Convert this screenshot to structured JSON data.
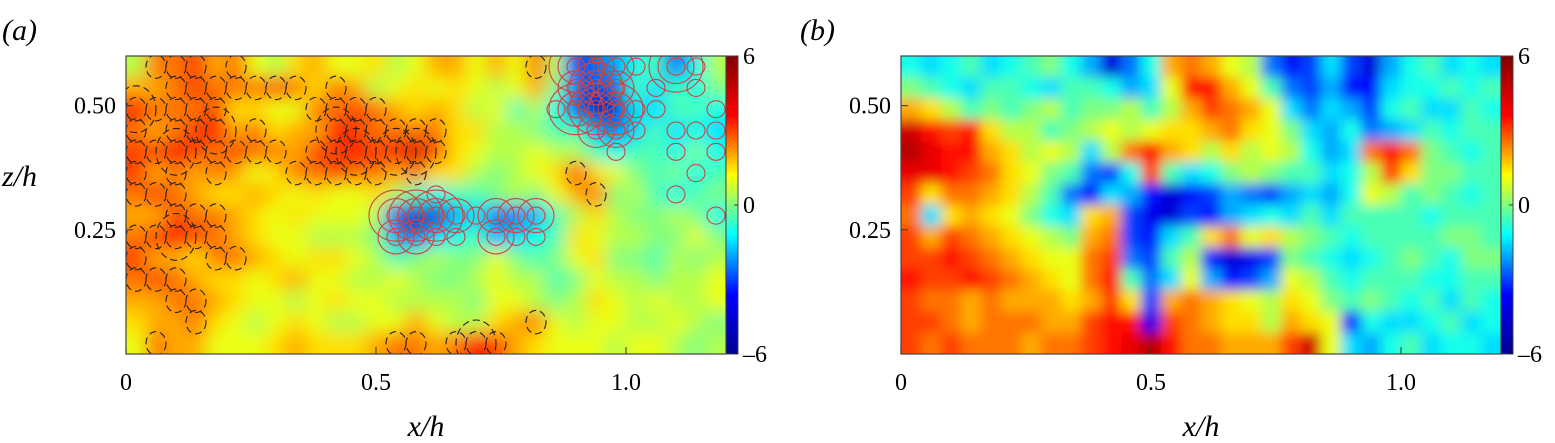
{
  "chart_data": [
    {
      "type": "heatmap",
      "panel_label": "(a)",
      "xlabel": "x/h",
      "ylabel": "z/h",
      "xlim": [
        0,
        1.2
      ],
      "ylim": [
        0,
        0.6
      ],
      "x_ticks": [
        {
          "value": 0,
          "label": "0"
        },
        {
          "value": 0.5,
          "label": "0.5"
        },
        {
          "value": 1.0,
          "label": "1.0"
        }
      ],
      "y_ticks": [
        {
          "value": 0.25,
          "label": "0.25"
        },
        {
          "value": 0.5,
          "label": "0.50"
        }
      ],
      "colorbar": {
        "range": [
          -6,
          6
        ],
        "ticks": [
          {
            "value": 6,
            "label": "6"
          },
          {
            "value": 0,
            "label": "0"
          },
          {
            "value": -6,
            "label": "–6"
          }
        ],
        "colormap": [
          "#00008f",
          "#0000ff",
          "#00ffff",
          "#ffff00",
          "#ff0000",
          "#800000"
        ]
      },
      "contours": {
        "positive_color": "#cc4444",
        "negative_color": "#222222",
        "negative_style": "dashed"
      },
      "field": [
        [
          0.5,
          2.5,
          2.5,
          3.0,
          2.0,
          2.5,
          1.0,
          0.5,
          1.5,
          2.0,
          1.0,
          1.0,
          1.5,
          0.5,
          1.0,
          2.0,
          2.0,
          1.0,
          2.0,
          1.0,
          2.5,
          0.5,
          -3.5,
          -2.5,
          -2.0,
          -1.0,
          -0.5,
          -3.0,
          -1.0,
          0.5
        ],
        [
          2.0,
          2.0,
          2.5,
          3.0,
          2.5,
          2.5,
          2.5,
          3.0,
          2.5,
          1.5,
          2.5,
          2.0,
          0.5,
          1.0,
          1.5,
          1.0,
          1.5,
          1.0,
          0.5,
          1.0,
          2.0,
          0.0,
          -2.5,
          -3.0,
          -2.5,
          -0.5,
          -1.5,
          -0.5,
          -1.0,
          0.0
        ],
        [
          3.5,
          2.5,
          2.5,
          2.5,
          3.0,
          1.5,
          1.5,
          1.0,
          1.0,
          2.5,
          2.5,
          3.0,
          2.5,
          2.0,
          1.5,
          2.0,
          1.5,
          0.5,
          1.0,
          -0.5,
          0.5,
          -1.0,
          -3.0,
          -5.0,
          -4.5,
          -1.5,
          -1.5,
          -0.5,
          -0.5,
          -1.0
        ],
        [
          2.5,
          2.0,
          2.5,
          3.0,
          3.5,
          2.0,
          2.5,
          1.5,
          2.0,
          2.0,
          3.5,
          3.0,
          2.5,
          2.5,
          2.5,
          2.5,
          1.5,
          1.5,
          0.5,
          0.5,
          0.0,
          -0.5,
          -0.5,
          -2.0,
          -2.5,
          -1.5,
          -0.5,
          -1.5,
          -1.0,
          -1.5
        ],
        [
          3.0,
          3.0,
          3.5,
          3.0,
          2.5,
          3.0,
          2.5,
          2.5,
          2.0,
          3.0,
          3.0,
          3.5,
          3.0,
          3.5,
          4.5,
          3.0,
          1.5,
          1.0,
          0.5,
          0.5,
          1.0,
          0.5,
          0.5,
          -0.5,
          -1.0,
          -0.5,
          -0.5,
          -1.0,
          0.0,
          -1.0
        ],
        [
          3.0,
          2.0,
          2.5,
          2.0,
          2.5,
          2.0,
          1.0,
          1.5,
          2.5,
          2.5,
          3.0,
          2.5,
          2.5,
          2.0,
          2.5,
          1.5,
          1.5,
          0.5,
          0.0,
          0.5,
          1.0,
          1.5,
          3.0,
          1.5,
          1.0,
          0.0,
          -0.5,
          0.0,
          -1.0,
          -0.5
        ],
        [
          2.5,
          3.0,
          2.5,
          2.0,
          1.5,
          1.5,
          2.0,
          1.5,
          1.0,
          1.5,
          1.0,
          1.0,
          1.5,
          0.5,
          -0.5,
          -1.0,
          -0.5,
          -0.5,
          0.0,
          0.5,
          0.0,
          1.0,
          2.0,
          2.5,
          0.0,
          0.5,
          -0.5,
          -1.0,
          -0.5,
          0.0
        ],
        [
          2.0,
          2.0,
          3.0,
          2.5,
          2.5,
          2.0,
          1.5,
          1.0,
          1.5,
          1.0,
          1.0,
          1.0,
          0.5,
          -3.0,
          -4.5,
          -4.0,
          -2.0,
          -1.5,
          -2.5,
          -2.5,
          -2.0,
          -0.5,
          0.5,
          1.5,
          0.5,
          0.0,
          0.0,
          0.5,
          0.0,
          -1.0
        ],
        [
          2.5,
          3.0,
          3.5,
          3.0,
          2.5,
          2.0,
          1.5,
          1.0,
          1.0,
          0.5,
          0.5,
          0.5,
          0.0,
          -2.0,
          -2.5,
          -1.5,
          -1.0,
          -0.5,
          -2.0,
          -1.5,
          -1.0,
          -0.5,
          1.5,
          1.0,
          0.5,
          0.5,
          0.0,
          0.0,
          1.0,
          0.0
        ],
        [
          3.0,
          2.0,
          2.0,
          1.5,
          2.5,
          2.5,
          2.0,
          1.5,
          1.0,
          1.5,
          1.5,
          1.0,
          0.5,
          -0.5,
          0.0,
          0.5,
          0.0,
          0.0,
          1.0,
          0.0,
          -0.5,
          0.0,
          1.0,
          1.5,
          0.0,
          0.0,
          -0.5,
          0.5,
          0.0,
          0.5
        ],
        [
          2.5,
          3.0,
          2.5,
          2.0,
          1.5,
          1.5,
          1.0,
          1.5,
          2.0,
          1.0,
          1.0,
          0.5,
          0.5,
          1.0,
          0.5,
          0.0,
          0.0,
          0.5,
          1.0,
          0.5,
          0.5,
          -0.5,
          0.0,
          1.0,
          0.5,
          0.5,
          0.0,
          0.5,
          0.5,
          1.0
        ],
        [
          2.0,
          2.0,
          2.5,
          2.5,
          2.0,
          1.5,
          1.0,
          1.0,
          0.5,
          1.0,
          1.5,
          1.0,
          1.0,
          0.5,
          0.5,
          0.5,
          0.5,
          0.0,
          1.0,
          1.0,
          0.5,
          0.0,
          0.5,
          1.5,
          1.0,
          0.5,
          1.0,
          0.5,
          0.5,
          1.0
        ],
        [
          1.5,
          2.0,
          2.0,
          2.5,
          1.5,
          1.0,
          0.5,
          1.0,
          1.5,
          1.0,
          0.5,
          0.5,
          1.0,
          1.0,
          2.0,
          1.0,
          0.5,
          0.5,
          1.5,
          2.0,
          2.5,
          1.0,
          0.5,
          1.0,
          1.0,
          0.5,
          0.5,
          1.0,
          0.5,
          0.0
        ],
        [
          1.0,
          2.5,
          2.0,
          2.0,
          1.0,
          1.0,
          1.0,
          1.5,
          2.0,
          1.5,
          1.5,
          1.5,
          2.0,
          2.5,
          2.5,
          2.0,
          2.5,
          3.5,
          3.0,
          2.0,
          1.5,
          1.0,
          1.0,
          1.0,
          0.5,
          1.0,
          1.0,
          0.5,
          0.0,
          0.5
        ]
      ]
    },
    {
      "type": "heatmap",
      "panel_label": "(b)",
      "xlabel": "x/h",
      "ylabel": "",
      "xlim": [
        0,
        1.2
      ],
      "ylim": [
        0,
        0.6
      ],
      "x_ticks": [
        {
          "value": 0,
          "label": "0"
        },
        {
          "value": 0.5,
          "label": "0.5"
        },
        {
          "value": 1.0,
          "label": "1.0"
        }
      ],
      "y_ticks": [
        {
          "value": 0.25,
          "label": "0.25"
        },
        {
          "value": 0.5,
          "label": "0.50"
        }
      ],
      "colorbar": {
        "range": [
          -6,
          6
        ],
        "ticks": [
          {
            "value": 6,
            "label": "6"
          },
          {
            "value": 0,
            "label": "0"
          },
          {
            "value": -6,
            "label": "–6"
          }
        ],
        "colormap": [
          "#00008f",
          "#0000ff",
          "#00ffff",
          "#ffff00",
          "#ff0000",
          "#800000"
        ]
      },
      "field": [
        [
          -1.0,
          -1.5,
          -1.0,
          -0.5,
          -1.5,
          -1.0,
          -0.5,
          0.0,
          -1.0,
          -2.0,
          -4.5,
          -2.5,
          -1.0,
          2.0,
          2.5,
          2.0,
          1.0,
          0.5,
          -2.5,
          -3.5,
          -3.0,
          -1.5,
          -3.0,
          -4.5,
          -2.0,
          -1.0,
          -0.5,
          -1.5,
          -1.0,
          -1.5
        ],
        [
          0.0,
          -0.5,
          -1.0,
          -1.5,
          -0.5,
          -0.5,
          -1.0,
          -1.5,
          -0.5,
          -0.5,
          -1.0,
          -2.0,
          -1.5,
          1.0,
          3.5,
          3.5,
          2.0,
          1.0,
          -0.5,
          -2.5,
          -3.0,
          -2.0,
          -3.5,
          -3.5,
          -1.5,
          -1.0,
          -1.0,
          -0.5,
          -1.0,
          -0.5
        ],
        [
          2.0,
          1.5,
          0.5,
          -0.5,
          0.0,
          -0.5,
          0.0,
          0.5,
          -0.5,
          0.0,
          0.0,
          0.5,
          -0.5,
          0.5,
          2.0,
          3.0,
          2.5,
          2.0,
          1.0,
          -1.5,
          -2.5,
          -1.5,
          -2.0,
          -3.0,
          -1.0,
          -0.5,
          -1.5,
          -1.5,
          -0.5,
          -1.0
        ],
        [
          4.5,
          3.5,
          3.0,
          3.5,
          1.5,
          0.5,
          0.5,
          -0.5,
          0.0,
          0.5,
          1.0,
          0.5,
          1.0,
          1.5,
          1.5,
          2.0,
          2.5,
          1.5,
          1.0,
          0.0,
          -1.5,
          -2.0,
          -1.0,
          -2.5,
          -2.0,
          -1.5,
          -0.5,
          -1.0,
          -0.5,
          -0.5
        ],
        [
          5.0,
          4.0,
          3.5,
          3.5,
          2.0,
          1.5,
          0.5,
          1.0,
          0.5,
          -1.5,
          0.5,
          2.5,
          3.5,
          2.0,
          1.5,
          0.5,
          1.5,
          0.5,
          1.0,
          0.5,
          -1.0,
          -2.0,
          -1.5,
          2.5,
          3.5,
          2.5,
          0.0,
          -0.5,
          -1.0,
          -0.5
        ],
        [
          4.0,
          4.0,
          3.5,
          3.0,
          2.5,
          1.5,
          1.0,
          0.0,
          -0.5,
          -2.5,
          -3.0,
          -1.0,
          3.0,
          -0.5,
          -1.5,
          -1.0,
          0.0,
          0.5,
          0.0,
          -0.5,
          -0.5,
          -1.5,
          -1.0,
          0.5,
          3.0,
          1.5,
          0.0,
          0.0,
          -0.5,
          -0.5
        ],
        [
          3.0,
          1.5,
          2.5,
          2.5,
          2.0,
          1.5,
          0.5,
          -0.5,
          -2.5,
          -3.5,
          -1.5,
          -2.0,
          -3.5,
          -4.5,
          -3.5,
          -3.0,
          -2.0,
          -2.5,
          -3.0,
          -2.0,
          -1.5,
          -2.0,
          -1.0,
          1.0,
          0.5,
          -0.5,
          0.0,
          -0.5,
          -1.0,
          -0.5
        ],
        [
          2.5,
          -1.5,
          1.5,
          2.0,
          1.5,
          1.0,
          0.0,
          -1.0,
          -1.5,
          1.5,
          2.0,
          -3.0,
          -4.0,
          -4.5,
          -3.0,
          -3.5,
          -2.0,
          -1.5,
          -1.0,
          -1.5,
          -0.5,
          -1.5,
          -0.5,
          -0.5,
          -0.5,
          -0.5,
          -1.0,
          -0.5,
          -0.5,
          -0.5
        ],
        [
          3.0,
          2.0,
          3.0,
          2.5,
          2.0,
          1.5,
          1.0,
          0.5,
          0.0,
          2.0,
          2.5,
          -3.0,
          -3.5,
          -1.5,
          -0.5,
          1.5,
          2.5,
          1.0,
          1.5,
          0.5,
          0.0,
          -0.5,
          -1.0,
          -0.5,
          -0.5,
          -0.5,
          -0.5,
          0.0,
          0.0,
          -0.5
        ],
        [
          3.0,
          3.0,
          3.5,
          3.0,
          2.5,
          2.0,
          1.5,
          1.0,
          1.0,
          2.5,
          3.0,
          -2.5,
          -3.0,
          -0.5,
          0.5,
          -3.5,
          -4.5,
          -4.0,
          -3.0,
          0.0,
          -0.5,
          -1.0,
          -1.5,
          -1.0,
          -0.5,
          0.0,
          -0.5,
          -1.0,
          0.0,
          0.0
        ],
        [
          3.5,
          3.0,
          3.0,
          3.5,
          3.0,
          2.5,
          2.0,
          1.5,
          1.0,
          2.5,
          3.5,
          -0.5,
          -2.5,
          -1.5,
          1.0,
          -2.0,
          -3.5,
          -3.0,
          -2.0,
          1.0,
          0.5,
          -0.5,
          -1.0,
          -0.5,
          -0.5,
          -0.5,
          -1.0,
          -1.0,
          -0.5,
          -0.5
        ],
        [
          3.0,
          2.5,
          2.5,
          2.0,
          2.5,
          2.0,
          2.0,
          2.0,
          1.5,
          2.0,
          3.0,
          1.5,
          -3.0,
          2.0,
          2.5,
          2.0,
          1.5,
          1.0,
          0.5,
          1.5,
          1.0,
          0.0,
          -0.5,
          0.0,
          -0.5,
          -1.0,
          -0.5,
          -1.5,
          -0.5,
          -1.0
        ],
        [
          3.0,
          3.0,
          2.5,
          2.0,
          2.5,
          2.5,
          2.5,
          2.0,
          2.0,
          3.0,
          3.5,
          3.5,
          -4.0,
          3.0,
          2.5,
          2.0,
          1.5,
          1.5,
          0.5,
          2.0,
          1.5,
          1.0,
          -3.5,
          -1.0,
          -1.5,
          -1.5,
          -1.0,
          -0.5,
          -1.5,
          -1.0
        ],
        [
          3.0,
          2.5,
          3.0,
          2.5,
          2.5,
          2.5,
          2.0,
          2.5,
          2.5,
          3.0,
          3.5,
          4.0,
          5.0,
          3.5,
          2.5,
          2.5,
          2.0,
          2.0,
          2.0,
          3.0,
          4.5,
          1.0,
          -1.5,
          -2.0,
          -1.0,
          -0.5,
          -1.5,
          -1.0,
          -1.0,
          -1.5
        ]
      ]
    }
  ]
}
